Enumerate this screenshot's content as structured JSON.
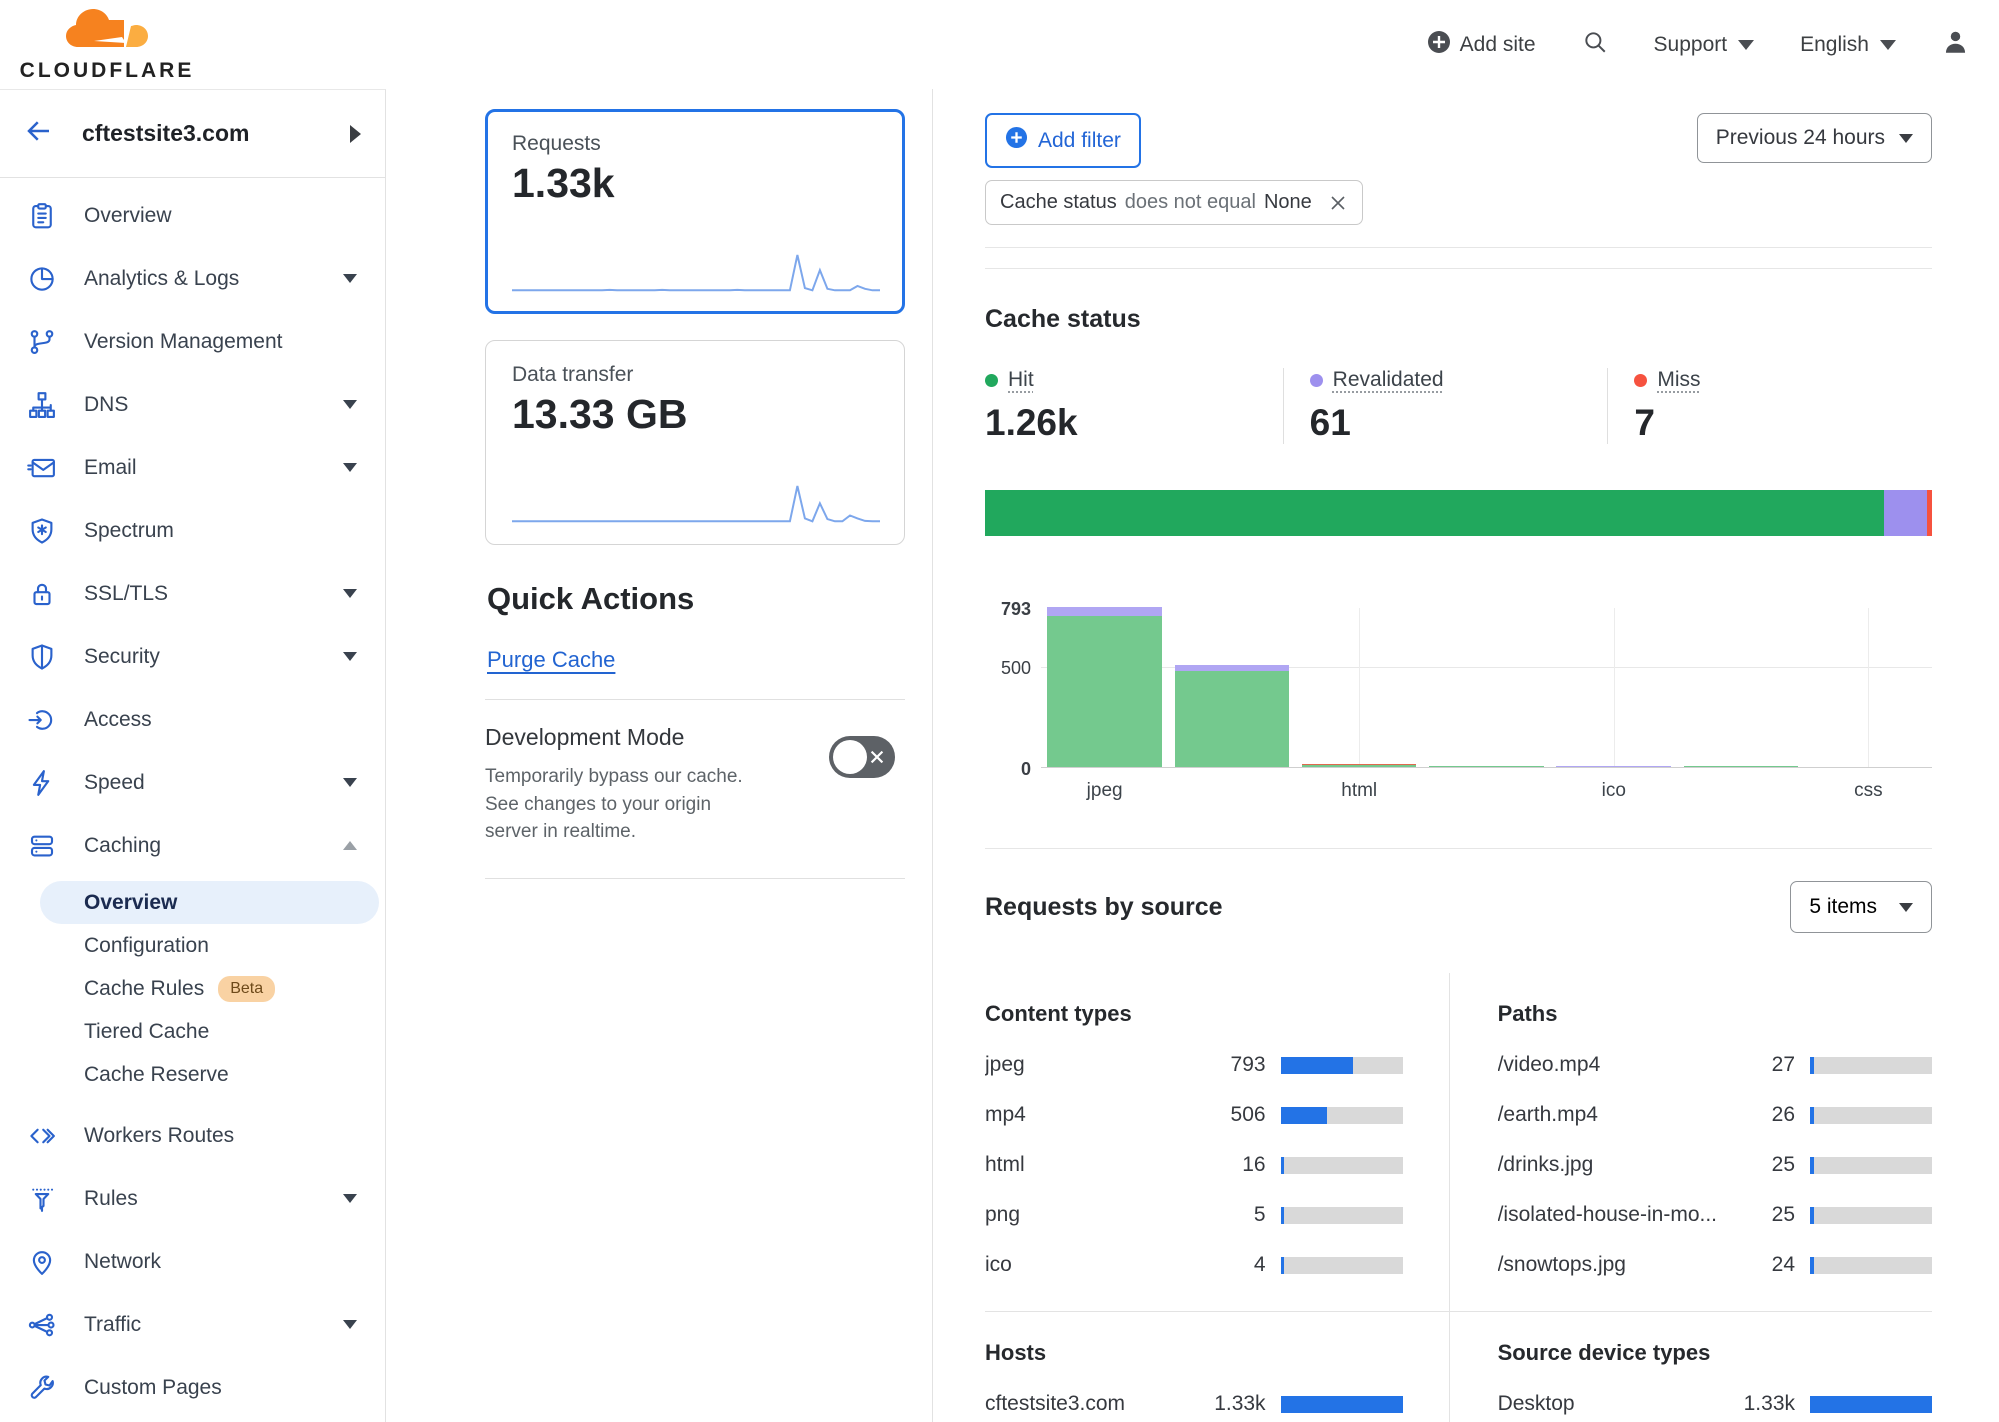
{
  "header": {
    "brand": "CLOUDFLARE",
    "add_site_label": "Add site",
    "support_label": "Support",
    "language_label": "English"
  },
  "sidebar": {
    "site": "cftestsite3.com",
    "items": [
      {
        "label": "Overview",
        "icon": "clipboard-icon"
      },
      {
        "label": "Analytics & Logs",
        "icon": "pie-chart-icon",
        "expandable": true
      },
      {
        "label": "Version Management",
        "icon": "branch-icon"
      },
      {
        "label": "DNS",
        "icon": "dns-tree-icon",
        "expandable": true
      },
      {
        "label": "Email",
        "icon": "envelope-icon",
        "expandable": true
      },
      {
        "label": "Spectrum",
        "icon": "shield-asterisk-icon"
      },
      {
        "label": "SSL/TLS",
        "icon": "padlock-icon",
        "expandable": true
      },
      {
        "label": "Security",
        "icon": "shield-icon",
        "expandable": true
      },
      {
        "label": "Access",
        "icon": "login-arrow-icon"
      },
      {
        "label": "Speed",
        "icon": "lightning-icon",
        "expandable": true
      },
      {
        "label": "Caching",
        "icon": "server-stack-icon",
        "expanded": true,
        "children": [
          {
            "label": "Overview",
            "active": true
          },
          {
            "label": "Configuration"
          },
          {
            "label": "Cache Rules",
            "badge": "Beta"
          },
          {
            "label": "Tiered Cache"
          },
          {
            "label": "Cache Reserve"
          }
        ]
      },
      {
        "label": "Workers Routes",
        "icon": "code-brackets-icon"
      },
      {
        "label": "Rules",
        "icon": "funnel-icon",
        "expandable": true
      },
      {
        "label": "Network",
        "icon": "map-pin-icon"
      },
      {
        "label": "Traffic",
        "icon": "share-nodes-icon",
        "expandable": true
      },
      {
        "label": "Custom Pages",
        "icon": "wrench-icon"
      }
    ]
  },
  "metrics": {
    "requests": {
      "label": "Requests",
      "value": "1.33k",
      "selected": true
    },
    "data_transfer": {
      "label": "Data transfer",
      "value": "13.33 GB",
      "selected": false
    }
  },
  "quick_actions": {
    "title": "Quick Actions",
    "purge_cache_label": "Purge Cache",
    "development_mode": {
      "title": "Development Mode",
      "description": "Temporarily bypass our cache. See changes to your origin server in realtime.",
      "enabled": false
    }
  },
  "filters": {
    "add_filter_label": "Add filter",
    "chip": {
      "field": "Cache status",
      "operator": "does not equal",
      "value": "None"
    },
    "time_range": "Previous 24 hours"
  },
  "cache_status_section": {
    "title": "Cache status",
    "stats": [
      {
        "name": "Hit",
        "display": "1.26k",
        "value": 1260,
        "color": "#21a85d"
      },
      {
        "name": "Revalidated",
        "display": "61",
        "value": 61,
        "color": "#9d90ee"
      },
      {
        "name": "Miss",
        "display": "7",
        "value": 7,
        "color": "#f6523f"
      }
    ]
  },
  "requests_by_source": {
    "title": "Requests by source",
    "items_dropdown": "5 items",
    "content_types_title": "Content types",
    "paths_title": "Paths",
    "hosts_title": "Hosts",
    "devices_title": "Source device types"
  },
  "chart_data": {
    "requests_sparkline": {
      "type": "line",
      "values": [
        2,
        2,
        2,
        2,
        2,
        2,
        2,
        2,
        2,
        2,
        2,
        2,
        2,
        3,
        2,
        2,
        2,
        2,
        2,
        2,
        3,
        2,
        2,
        2,
        2,
        2,
        2,
        2,
        2,
        2,
        3,
        2,
        2,
        2,
        2,
        2,
        2,
        2,
        100,
        8,
        2,
        58,
        6,
        2,
        2,
        2,
        14,
        6,
        2,
        2
      ]
    },
    "transfer_sparkline": {
      "type": "line",
      "values": [
        2,
        2,
        2,
        2,
        2,
        2,
        2,
        2,
        2,
        2,
        2,
        2,
        2,
        2,
        2,
        2,
        2,
        2,
        2,
        2,
        2,
        2,
        2,
        2,
        2,
        2,
        2,
        2,
        2,
        2,
        2,
        2,
        2,
        2,
        2,
        2,
        2,
        2,
        100,
        10,
        2,
        52,
        8,
        2,
        2,
        18,
        10,
        3,
        2,
        2
      ]
    },
    "cache_status_totals": {
      "type": "stacked-bar",
      "series": [
        {
          "name": "Hit",
          "value": 1260,
          "color": "#21a85d"
        },
        {
          "name": "Revalidated",
          "value": 61,
          "color": "#9d90ee"
        },
        {
          "name": "Miss",
          "value": 7,
          "color": "#f6523f"
        }
      ]
    },
    "cache_status_by_type": {
      "type": "bar",
      "ymax": 793,
      "y_ticks": [
        793,
        500,
        0
      ],
      "x_tick_labels": [
        "jpeg",
        "html",
        "ico",
        "css"
      ],
      "slots": [
        {
          "tick": "jpeg",
          "segments": [
            {
              "name": "hit",
              "value": 750
            },
            {
              "name": "revalidated",
              "value": 43
            }
          ]
        },
        {
          "tick": "",
          "segments": [
            {
              "name": "hit",
              "value": 478
            },
            {
              "name": "revalidated",
              "value": 28
            }
          ]
        },
        {
          "tick": "html",
          "segments": [
            {
              "name": "hit",
              "value": 9
            },
            {
              "name": "miss",
              "value": 7
            }
          ]
        },
        {
          "tick": "",
          "segments": [
            {
              "name": "hit",
              "value": 5
            }
          ]
        },
        {
          "tick": "ico",
          "segments": [
            {
              "name": "revalidated",
              "value": 4
            }
          ]
        },
        {
          "tick": "",
          "segments": [
            {
              "name": "hit",
              "value": 1
            }
          ]
        },
        {
          "tick": "css",
          "segments": []
        }
      ],
      "segment_colors": {
        "hit": "#74c98e",
        "revalidated": "#b0a6f3",
        "miss": "#e0694f"
      }
    },
    "content_types": {
      "type": "table",
      "max": 1330,
      "rows": [
        {
          "label": "jpeg",
          "display": "793",
          "value": 793
        },
        {
          "label": "mp4",
          "display": "506",
          "value": 506
        },
        {
          "label": "html",
          "display": "16",
          "value": 16
        },
        {
          "label": "png",
          "display": "5",
          "value": 5
        },
        {
          "label": "ico",
          "display": "4",
          "value": 4
        }
      ]
    },
    "paths": {
      "type": "table",
      "max": 1330,
      "rows": [
        {
          "label": "/video.mp4",
          "display": "27",
          "value": 27
        },
        {
          "label": "/earth.mp4",
          "display": "26",
          "value": 26
        },
        {
          "label": "/drinks.jpg",
          "display": "25",
          "value": 25
        },
        {
          "label": "/isolated-house-in-mo...",
          "display": "25",
          "value": 25
        },
        {
          "label": "/snowtops.jpg",
          "display": "24",
          "value": 24
        }
      ]
    },
    "hosts": {
      "type": "table",
      "max": 1330,
      "rows": [
        {
          "label": "cftestsite3.com",
          "display": "1.33k",
          "value": 1330
        }
      ]
    },
    "devices": {
      "type": "table",
      "max": 1330,
      "rows": [
        {
          "label": "Desktop",
          "display": "1.33k",
          "value": 1330
        }
      ]
    }
  },
  "colors": {
    "accent_blue": "#2373e6",
    "link_blue": "#2264d1",
    "nav_icon_blue": "#2a62cc",
    "hit_green": "#21a85d",
    "revalidated_purple": "#9d90ee",
    "miss_red": "#f6523f",
    "bar_track_gray": "#d9d9d9",
    "logo_orange": "#f6821f",
    "logo_light_orange": "#fbad41"
  }
}
